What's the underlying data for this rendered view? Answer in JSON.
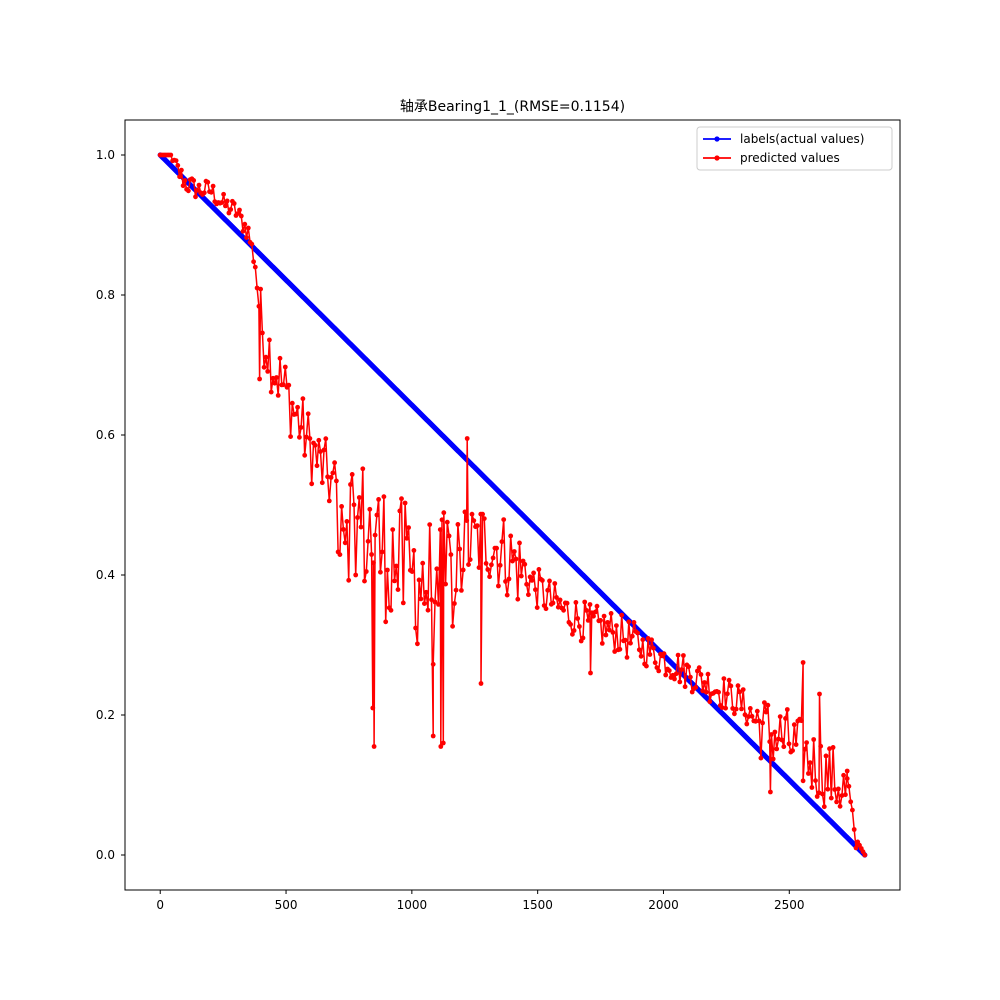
{
  "chart_data": {
    "type": "line",
    "title": "轴承Bearing1_1_(RMSE=0.1154)",
    "xlabel": "",
    "ylabel": "",
    "xlim": [
      -140,
      2940
    ],
    "ylim": [
      -0.05,
      1.05
    ],
    "x_ticks": [
      0,
      500,
      1000,
      1500,
      2000,
      2500
    ],
    "y_ticks": [
      0.0,
      0.2,
      0.4,
      0.6,
      0.8,
      1.0
    ],
    "x_tick_labels": [
      "0",
      "500",
      "1000",
      "1500",
      "2000",
      "2500"
    ],
    "y_tick_labels": [
      "0.0",
      "0.2",
      "0.4",
      "0.6",
      "0.8",
      "1.0"
    ],
    "grid": false,
    "legend_position": "top-right",
    "colors": {
      "labels": "#0000ff",
      "predicted": "#ff0000"
    },
    "series": [
      {
        "name": "labels(actual values)",
        "color": "#0000ff",
        "marker": "circle",
        "line": {
          "x0": 0,
          "y0": 1.0,
          "x1": 2800,
          "y1": 0.0
        }
      },
      {
        "name": "predicted values",
        "color": "#ff0000",
        "marker": "circle",
        "trend": [
          {
            "x": 0,
            "y": 1.0
          },
          {
            "x": 50,
            "y": 0.99
          },
          {
            "x": 100,
            "y": 0.96
          },
          {
            "x": 150,
            "y": 0.95
          },
          {
            "x": 200,
            "y": 0.95
          },
          {
            "x": 250,
            "y": 0.93
          },
          {
            "x": 300,
            "y": 0.92
          },
          {
            "x": 350,
            "y": 0.89
          },
          {
            "x": 380,
            "y": 0.84
          },
          {
            "x": 400,
            "y": 0.76
          },
          {
            "x": 450,
            "y": 0.7
          },
          {
            "x": 500,
            "y": 0.66
          },
          {
            "x": 550,
            "y": 0.62
          },
          {
            "x": 600,
            "y": 0.58
          },
          {
            "x": 650,
            "y": 0.55
          },
          {
            "x": 700,
            "y": 0.52
          },
          {
            "x": 750,
            "y": 0.49
          },
          {
            "x": 800,
            "y": 0.47
          },
          {
            "x": 900,
            "y": 0.43
          },
          {
            "x": 1000,
            "y": 0.4
          },
          {
            "x": 1100,
            "y": 0.38
          },
          {
            "x": 1150,
            "y": 0.4
          },
          {
            "x": 1200,
            "y": 0.44
          },
          {
            "x": 1300,
            "y": 0.45
          },
          {
            "x": 1400,
            "y": 0.42
          },
          {
            "x": 1500,
            "y": 0.38
          },
          {
            "x": 1600,
            "y": 0.35
          },
          {
            "x": 1700,
            "y": 0.33
          },
          {
            "x": 1800,
            "y": 0.32
          },
          {
            "x": 1900,
            "y": 0.3
          },
          {
            "x": 2000,
            "y": 0.28
          },
          {
            "x": 2100,
            "y": 0.26
          },
          {
            "x": 2200,
            "y": 0.24
          },
          {
            "x": 2300,
            "y": 0.22
          },
          {
            "x": 2400,
            "y": 0.18
          },
          {
            "x": 2500,
            "y": 0.16
          },
          {
            "x": 2600,
            "y": 0.13
          },
          {
            "x": 2700,
            "y": 0.1
          },
          {
            "x": 2740,
            "y": 0.08
          },
          {
            "x": 2760,
            "y": 0.02
          },
          {
            "x": 2800,
            "y": 0.0
          }
        ],
        "spikes": [
          {
            "x": 395,
            "y": 0.68
          },
          {
            "x": 845,
            "y": 0.21
          },
          {
            "x": 850,
            "y": 0.155
          },
          {
            "x": 1085,
            "y": 0.17
          },
          {
            "x": 1115,
            "y": 0.155
          },
          {
            "x": 1125,
            "y": 0.16
          },
          {
            "x": 1220,
            "y": 0.595
          },
          {
            "x": 1275,
            "y": 0.245
          },
          {
            "x": 1710,
            "y": 0.26
          },
          {
            "x": 2425,
            "y": 0.09
          },
          {
            "x": 2555,
            "y": 0.275
          },
          {
            "x": 2620,
            "y": 0.23
          },
          {
            "x": 2730,
            "y": 0.12
          }
        ]
      }
    ]
  }
}
